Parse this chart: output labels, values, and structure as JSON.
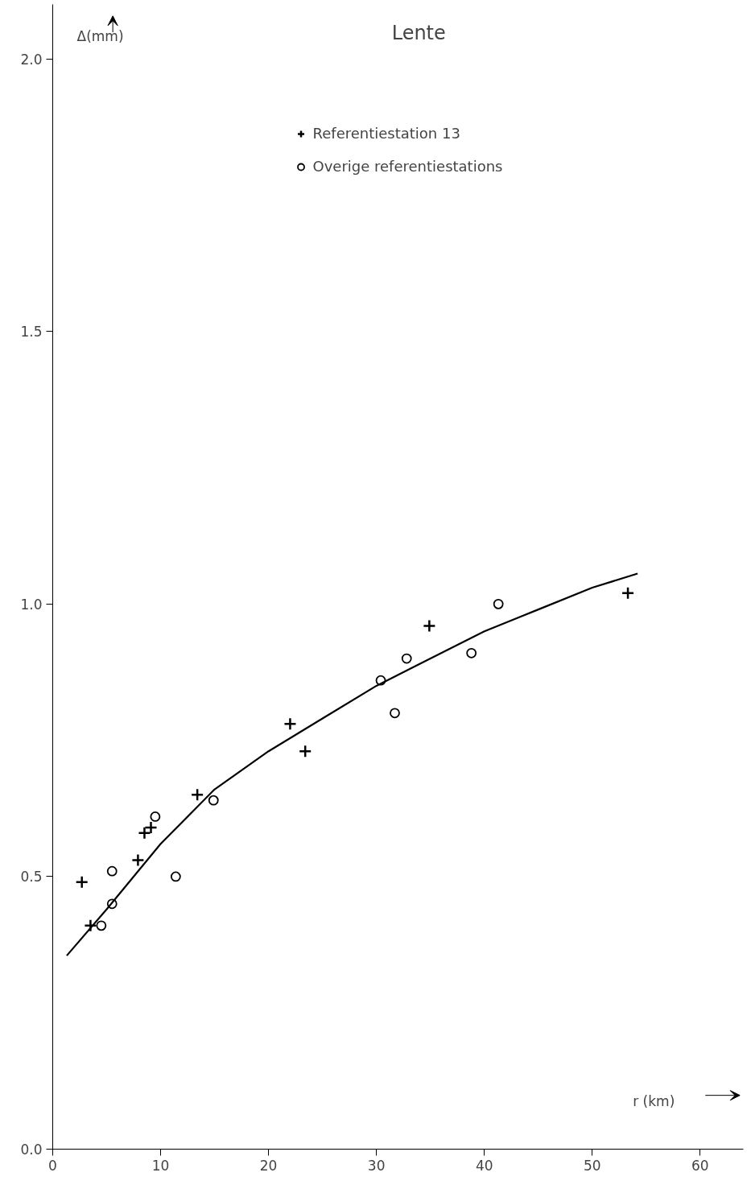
{
  "chart_data": {
    "type": "scatter",
    "title": "Lente",
    "xlabel": "r (km)",
    "ylabel": "Δ(mm)",
    "xlim": [
      0,
      64
    ],
    "ylim": [
      0,
      2.1
    ],
    "xticks": [
      0,
      10,
      20,
      30,
      40,
      50,
      60
    ],
    "yticks": [
      {
        "value": 0,
        "label": "0.0"
      },
      {
        "value": 0.5,
        "label": "0.5"
      },
      {
        "value": 1.0,
        "label": "1.0"
      },
      {
        "value": 1.5,
        "label": "1.5"
      },
      {
        "value": 2.0,
        "label": "2.0"
      }
    ],
    "grid": false,
    "legend": "top",
    "series": [
      {
        "name": "Referentiestation 13",
        "color": "#000000",
        "marker": "cross",
        "x": [
          3.5,
          2.7,
          7.9,
          8.5,
          9.1,
          13.4,
          22.0,
          23.4,
          34.9,
          53.3
        ],
        "values": [
          0.41,
          0.49,
          0.53,
          0.58,
          0.59,
          0.65,
          0.78,
          0.73,
          0.96,
          1.02
        ]
      },
      {
        "name": "Overige referentiestations",
        "color": "#000000",
        "marker": "circle",
        "x": [
          4.5,
          5.5,
          5.5,
          9.5,
          11.4,
          14.9,
          30.4,
          31.7,
          32.8,
          38.8,
          41.3
        ],
        "values": [
          0.41,
          0.45,
          0.51,
          0.61,
          0.5,
          0.64,
          0.86,
          0.8,
          0.9,
          0.91,
          1.0
        ]
      },
      {
        "type": "line",
        "color": "#000000",
        "line_style": "solid",
        "x": [
          1.3,
          5,
          10,
          15,
          20,
          25,
          30,
          35,
          40,
          45,
          50,
          54.2
        ],
        "values": [
          0.355,
          0.44,
          0.56,
          0.66,
          0.73,
          0.79,
          0.85,
          0.9,
          0.95,
          0.99,
          1.03,
          1.056
        ]
      }
    ]
  }
}
